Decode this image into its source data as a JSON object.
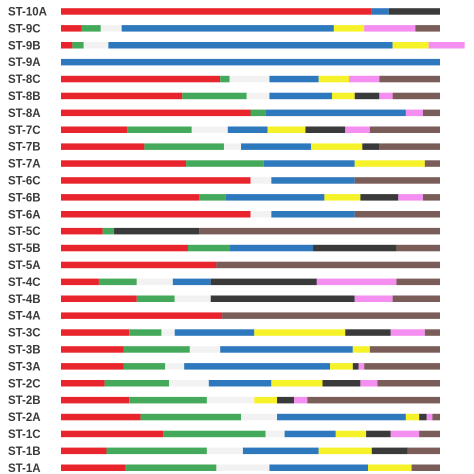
{
  "chart_data": {
    "type": "bar",
    "orientation": "horizontal",
    "stacked": true,
    "xlim": [
      0,
      100
    ],
    "grid": false,
    "legend": "none",
    "palette": [
      "#e8242c",
      "#44a95a",
      "#f2f2f2",
      "#2e78be",
      "#f6f22a",
      "#3a3a3a",
      "#f48ef0",
      "#7a5c58"
    ],
    "categories": [
      "ST-10A",
      "ST-9C",
      "ST-9B",
      "ST-9A",
      "ST-8C",
      "ST-8B",
      "ST-8A",
      "ST-7C",
      "ST-7B",
      "ST-7A",
      "ST-6C",
      "ST-6B",
      "ST-6A",
      "ST-5C",
      "ST-5B",
      "ST-5A",
      "ST-4C",
      "ST-4B",
      "ST-4A",
      "ST-3C",
      "ST-3B",
      "ST-3A",
      "ST-2C",
      "ST-2B",
      "ST-2A",
      "ST-1C",
      "ST-1B",
      "ST-1A"
    ],
    "rows": [
      [
        82.0,
        0.0,
        0.0,
        4.5,
        0.0,
        13.5,
        0.0,
        0.0
      ],
      [
        5.5,
        5.0,
        5.5,
        56.0,
        8.0,
        0.0,
        13.5,
        6.5
      ],
      [
        3.0,
        3.0,
        6.5,
        75.0,
        9.5,
        0.0,
        9.5,
        0.0
      ],
      [
        0.0,
        0.0,
        0.0,
        100.0,
        0.0,
        0.0,
        0.0,
        0.0
      ],
      [
        42.0,
        2.5,
        10.5,
        13.0,
        8.0,
        0.0,
        8.0,
        16.0
      ],
      [
        32.0,
        17.0,
        6.0,
        16.5,
        6.0,
        6.5,
        3.5,
        12.5
      ],
      [
        50.0,
        4.0,
        0.0,
        37.0,
        0.0,
        0.0,
        4.5,
        4.5
      ],
      [
        17.5,
        17.0,
        9.5,
        10.5,
        10.0,
        10.5,
        6.5,
        18.5
      ],
      [
        22.0,
        21.0,
        4.5,
        18.5,
        13.5,
        4.5,
        0.0,
        16.0
      ],
      [
        33.0,
        20.5,
        0.0,
        24.0,
        18.5,
        0.0,
        0.0,
        4.0
      ],
      [
        50.0,
        0.0,
        5.5,
        22.0,
        0.0,
        0.0,
        0.0,
        22.5
      ],
      [
        36.5,
        7.0,
        0.0,
        26.0,
        9.5,
        10.0,
        6.5,
        4.5
      ],
      [
        50.0,
        0.0,
        5.5,
        22.0,
        0.0,
        0.0,
        0.0,
        22.5
      ],
      [
        11.0,
        3.0,
        0.0,
        0.0,
        0.0,
        22.5,
        0.0,
        63.5
      ],
      [
        33.5,
        11.0,
        0.0,
        22.0,
        0.0,
        22.0,
        0.0,
        11.5
      ],
      [
        41.0,
        0.0,
        0.0,
        0.0,
        0.0,
        0.0,
        0.0,
        59.0
      ],
      [
        10.0,
        10.0,
        9.5,
        10.0,
        0.0,
        28.0,
        21.0,
        11.5
      ],
      [
        20.0,
        10.0,
        9.5,
        0.0,
        0.0,
        38.0,
        10.0,
        12.5
      ],
      [
        42.5,
        0.0,
        0.0,
        0.0,
        0.0,
        0.0,
        0.0,
        57.5
      ],
      [
        18.0,
        8.5,
        3.5,
        21.0,
        24.0,
        12.0,
        9.0,
        4.0
      ],
      [
        16.5,
        17.5,
        8.0,
        35.0,
        4.5,
        0.0,
        0.0,
        18.5
      ],
      [
        16.5,
        11.0,
        5.0,
        38.5,
        6.0,
        1.5,
        1.5,
        20.0
      ],
      [
        11.5,
        17.0,
        10.5,
        16.5,
        13.5,
        10.0,
        4.5,
        16.5
      ],
      [
        18.0,
        20.5,
        12.5,
        0.0,
        6.0,
        4.5,
        3.5,
        35.0
      ],
      [
        21.0,
        26.5,
        9.5,
        34.0,
        3.5,
        2.0,
        1.5,
        2.0
      ],
      [
        27.0,
        27.0,
        5.0,
        13.5,
        8.0,
        6.5,
        7.5,
        5.5
      ],
      [
        12.0,
        26.5,
        9.5,
        20.0,
        14.0,
        9.5,
        0.0,
        8.5
      ],
      [
        17.0,
        24.0,
        14.0,
        26.0,
        11.5,
        0.0,
        0.0,
        7.5
      ]
    ]
  }
}
